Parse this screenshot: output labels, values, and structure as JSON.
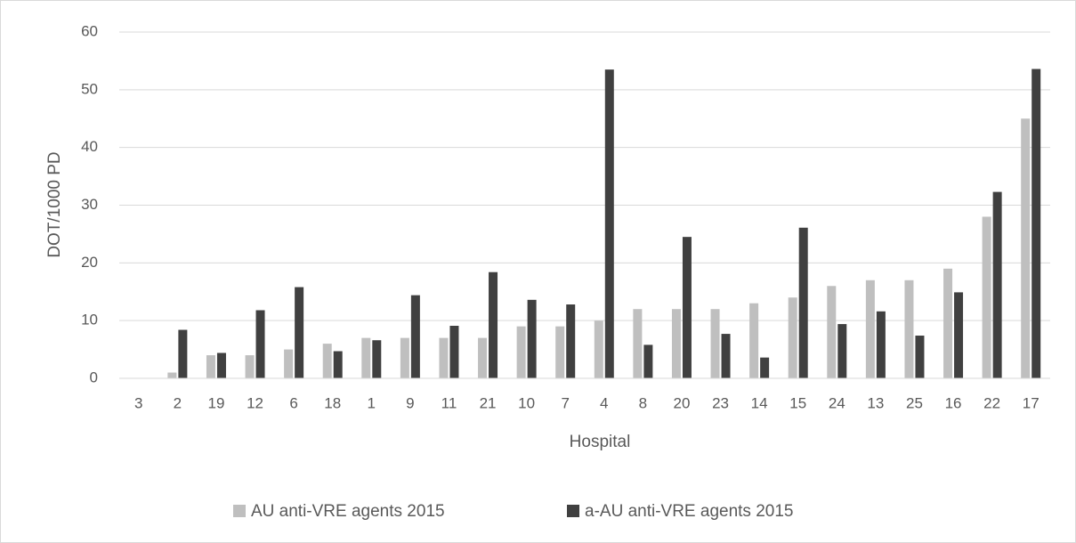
{
  "chart_data": {
    "type": "bar",
    "x_label": "Hospital",
    "y_label": "DOT/1000 PD",
    "categories": [
      "3",
      "2",
      "19",
      "12",
      "6",
      "18",
      "1",
      "9",
      "11",
      "21",
      "10",
      "7",
      "4",
      "8",
      "20",
      "23",
      "14",
      "15",
      "24",
      "13",
      "25",
      "16",
      "22",
      "17"
    ],
    "series": [
      {
        "name": "AU anti-VRE agents 2015",
        "color": "#bfbfbf",
        "values": [
          0,
          1,
          4,
          4,
          5,
          6,
          7,
          7,
          7,
          7,
          9,
          9,
          10,
          12,
          12,
          12,
          13,
          14,
          16,
          17,
          17,
          19,
          28,
          45
        ]
      },
      {
        "name": "a-AU anti-VRE agents 2015",
        "color": "#404040",
        "values": [
          0,
          8.4,
          4.4,
          11.8,
          15.8,
          4.7,
          6.6,
          14.4,
          9.1,
          18.4,
          13.6,
          12.8,
          53.5,
          5.8,
          24.5,
          7.7,
          3.6,
          26.1,
          9.4,
          11.6,
          7.4,
          14.9,
          32.3,
          53.6
        ]
      }
    ],
    "ylim": [
      0,
      60
    ],
    "yticks": [
      0,
      10,
      20,
      30,
      40,
      50,
      60
    ],
    "grid": true,
    "legend": "bottom"
  }
}
